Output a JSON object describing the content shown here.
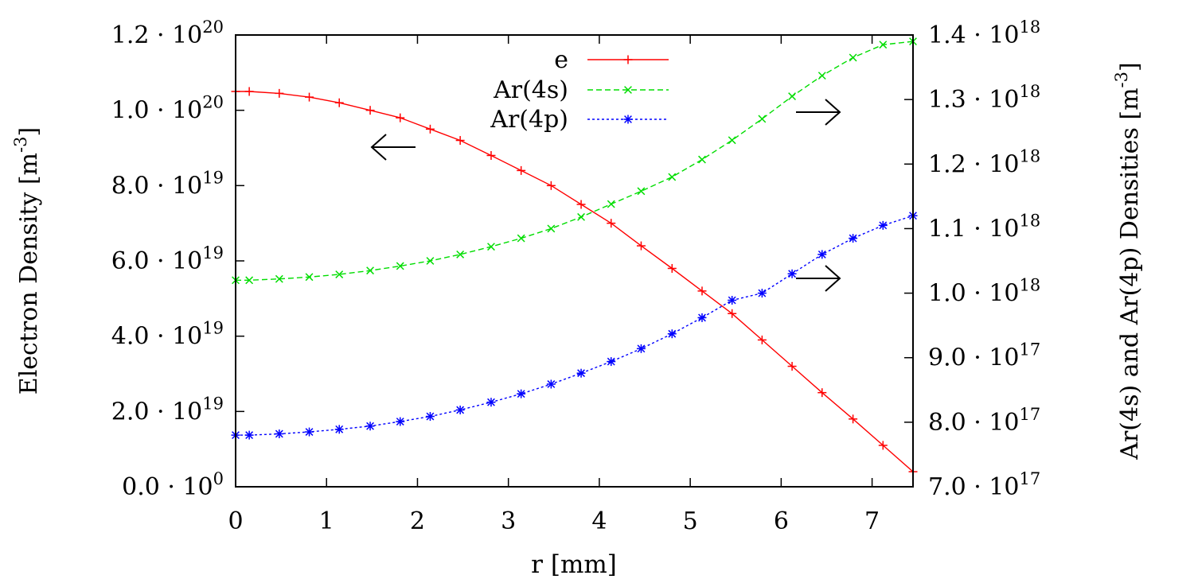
{
  "chart_data": {
    "type": "line",
    "xlabel": "r [mm]",
    "ylabel_left": "Electron Density [m^-3]",
    "ylabel_right": "Ar(4s) and Ar(4p) Densities [m^-3]",
    "xlim": [
      0,
      7.45
    ],
    "ylim_left": [
      0,
      1.2e+20
    ],
    "ylim_right": [
      7e+17,
      1.4e+18
    ],
    "x_ticks": [
      "0",
      "1",
      "2",
      "3",
      "4",
      "5",
      "6",
      "7"
    ],
    "y_left_ticks": [
      {
        "value": 0,
        "mant": "0.0",
        "exp": "0"
      },
      {
        "value": 2e+19,
        "mant": "2.0",
        "exp": "19"
      },
      {
        "value": 4e+19,
        "mant": "4.0",
        "exp": "19"
      },
      {
        "value": 6e+19,
        "mant": "6.0",
        "exp": "19"
      },
      {
        "value": 8e+19,
        "mant": "8.0",
        "exp": "19"
      },
      {
        "value": 1e+20,
        "mant": "1.0",
        "exp": "20"
      },
      {
        "value": 1.2e+20,
        "mant": "1.2",
        "exp": "20"
      }
    ],
    "y_right_ticks": [
      {
        "value": 7e+17,
        "mant": "7.0",
        "exp": "17"
      },
      {
        "value": 8e+17,
        "mant": "8.0",
        "exp": "17"
      },
      {
        "value": 9e+17,
        "mant": "9.0",
        "exp": "17"
      },
      {
        "value": 1e+18,
        "mant": "1.0",
        "exp": "18"
      },
      {
        "value": 1.1e+18,
        "mant": "1.1",
        "exp": "18"
      },
      {
        "value": 1.2e+18,
        "mant": "1.2",
        "exp": "18"
      },
      {
        "value": 1.3e+18,
        "mant": "1.3",
        "exp": "18"
      },
      {
        "value": 1.4e+18,
        "mant": "1.4",
        "exp": "18"
      }
    ],
    "x": [
      0,
      0.15,
      0.48,
      0.81,
      1.14,
      1.48,
      1.81,
      2.14,
      2.47,
      2.81,
      3.14,
      3.47,
      3.8,
      4.13,
      4.46,
      4.8,
      5.13,
      5.46,
      5.79,
      6.12,
      6.45,
      6.79,
      7.12,
      7.45
    ],
    "series": [
      {
        "name": "e",
        "axis": "left",
        "color": "#ff0000",
        "marker": "plus",
        "dash": "",
        "values": [
          1.05e+20,
          1.05e+20,
          1.045e+20,
          1.035e+20,
          1.02e+20,
          1e+20,
          9.8e+19,
          9.5e+19,
          9.2e+19,
          8.8e+19,
          8.4e+19,
          8e+19,
          7.5e+19,
          7e+19,
          6.4e+19,
          5.8e+19,
          5.2e+19,
          4.6e+19,
          3.9e+19,
          3.2e+19,
          2.5e+19,
          1.8e+19,
          1.1e+19,
          4e+18
        ]
      },
      {
        "name": "Ar(4s)",
        "axis": "right",
        "color": "#00dd00",
        "marker": "cross",
        "dash": "7,4",
        "values": [
          1.02e+18,
          1.02e+18,
          1.022e+18,
          1.025e+18,
          1.029e+18,
          1.035e+18,
          1.042e+18,
          1.05e+18,
          1.06e+18,
          1.072e+18,
          1.085e+18,
          1.1e+18,
          1.118e+18,
          1.138e+18,
          1.158e+18,
          1.18e+18,
          1.207e+18,
          1.237e+18,
          1.27e+18,
          1.305e+18,
          1.337e+18,
          1.365e+18,
          1.385e+18,
          1.39e+18
        ]
      },
      {
        "name": "Ar(4p)",
        "axis": "right",
        "color": "#0000ff",
        "marker": "star",
        "dash": "3,3",
        "values": [
          7.8e+17,
          7.8e+17,
          7.82e+17,
          7.85e+17,
          7.89e+17,
          7.94e+17,
          8.01e+17,
          8.09e+17,
          8.19e+17,
          8.31e+17,
          8.44e+17,
          8.59e+17,
          8.76e+17,
          8.94e+17,
          9.14e+17,
          9.37e+17,
          9.62e+17,
          9.89e+17,
          1e+18,
          1.03e+18,
          1.06e+18,
          1.085e+18,
          1.105e+18,
          1.12e+18
        ]
      }
    ],
    "legend_position": "top-center",
    "grid": false
  }
}
